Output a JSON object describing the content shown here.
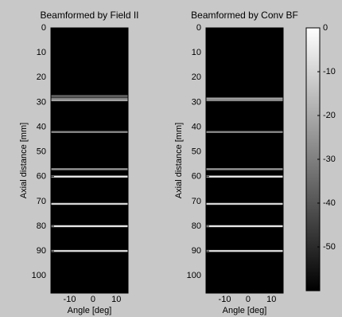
{
  "chart_data": [
    {
      "type": "image",
      "title": "Beamformed by Field II",
      "xlabel": "Angle [deg]",
      "ylabel": "Axial distance [mm]",
      "xlim": [
        -18,
        15
      ],
      "xticks": [
        -10,
        0,
        10
      ],
      "ylim": [
        0,
        107
      ],
      "yticks": [
        0,
        10,
        20,
        30,
        40,
        50,
        60,
        70,
        80,
        90,
        100
      ],
      "reflectors": {
        "depths": [
          27.5,
          28.5,
          29.2,
          42,
          57,
          60,
          71,
          80,
          90
        ],
        "levels": [
          -35,
          -30,
          -22,
          -28,
          -25,
          -5,
          -10,
          -6,
          -9
        ]
      }
    },
    {
      "type": "image",
      "title": "Beamformed by Conv BF",
      "xlabel": "Angle [deg]",
      "ylabel": "Axial distance [mm]",
      "xlim": [
        -18,
        15
      ],
      "xticks": [
        -10,
        0,
        10
      ],
      "ylim": [
        0,
        107
      ],
      "yticks": [
        0,
        10,
        20,
        30,
        40,
        50,
        60,
        70,
        80,
        90,
        100
      ],
      "reflectors": {
        "depths": [
          28.5,
          29.2,
          42,
          57,
          60,
          71,
          80,
          90
        ],
        "levels": [
          -22,
          -28,
          -28,
          -25,
          -5,
          -10,
          -6,
          -9
        ]
      }
    },
    {
      "type": "colorbar",
      "colormap": "gray",
      "ylim": [
        -60,
        0
      ],
      "yticks": [
        0,
        -10,
        -20,
        -30,
        -40,
        -50
      ]
    }
  ]
}
